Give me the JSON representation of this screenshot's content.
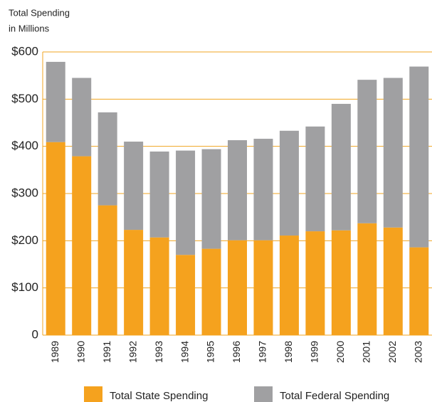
{
  "chart_data": {
    "type": "stacked_bar",
    "ylabel": [
      "Total Spending",
      "in Millions"
    ],
    "categories": [
      "1989",
      "1990",
      "1991",
      "1992",
      "1993",
      "1994",
      "1995",
      "1996",
      "1997",
      "1998",
      "1999",
      "2000",
      "2001",
      "2002",
      "2003"
    ],
    "series": [
      {
        "name": "Total State Spending",
        "color": "#f5a21e",
        "values": [
          409,
          379,
          275,
          223,
          207,
          170,
          183,
          201,
          201,
          211,
          220,
          222,
          237,
          228,
          186
        ]
      },
      {
        "name": "Total Federal Spending",
        "color": "#a0a0a2",
        "values": [
          170,
          166,
          197,
          187,
          182,
          221,
          211,
          212,
          215,
          222,
          222,
          268,
          304,
          317,
          383
        ]
      }
    ],
    "ylim": [
      0,
      600
    ],
    "yticks": [
      0,
      {
        "value": 100,
        "label": "$100"
      },
      {
        "value": 200,
        "label": "$200"
      },
      {
        "value": 300,
        "label": "$300"
      },
      {
        "value": 400,
        "label": "$400"
      },
      {
        "value": 500,
        "label": "$500"
      },
      {
        "value": 600,
        "label": "$600"
      }
    ],
    "grid": true,
    "legend": "bottom"
  }
}
